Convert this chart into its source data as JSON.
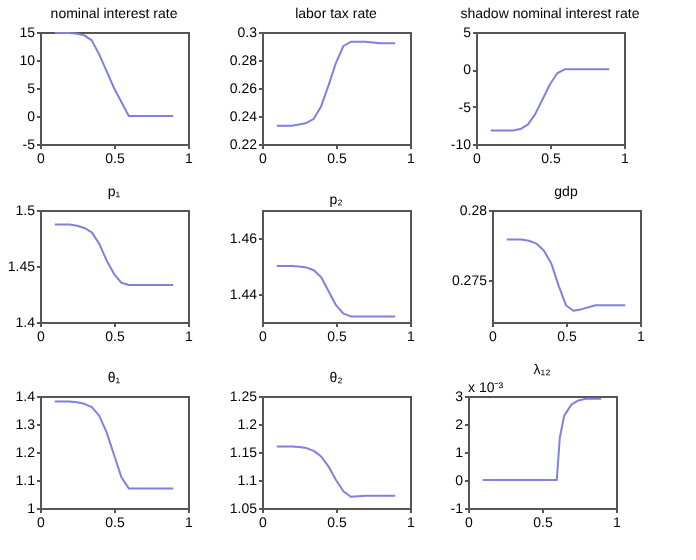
{
  "chart_data": [
    {
      "type": "line",
      "title": "nominal interest rate",
      "x": [
        0.1,
        0.2,
        0.25,
        0.3,
        0.35,
        0.4,
        0.45,
        0.5,
        0.55,
        0.6,
        0.7,
        0.8,
        0.9
      ],
      "series": [
        {
          "color": "#8080e0",
          "values": [
            14.8,
            14.8,
            14.7,
            14.4,
            13.5,
            11,
            8,
            5,
            2.5,
            0,
            0,
            0,
            0
          ]
        }
      ],
      "xlim": [
        0,
        1
      ],
      "xticks": [
        0,
        0.5,
        1
      ],
      "ylim": [
        -5,
        15
      ],
      "yticks": [
        -5,
        0,
        5,
        10,
        15
      ],
      "grid": false
    },
    {
      "type": "line",
      "title": "labor tax rate",
      "x": [
        0.1,
        0.2,
        0.25,
        0.3,
        0.35,
        0.4,
        0.45,
        0.5,
        0.55,
        0.6,
        0.7,
        0.8,
        0.9
      ],
      "series": [
        {
          "color": "#8080e0",
          "values": [
            0.233,
            0.233,
            0.234,
            0.235,
            0.238,
            0.247,
            0.262,
            0.278,
            0.29,
            0.293,
            0.293,
            0.292,
            0.292
          ]
        }
      ],
      "xlim": [
        0,
        1
      ],
      "xticks": [
        0,
        0.5,
        1
      ],
      "ylim": [
        0.22,
        0.3
      ],
      "yticks": [
        0.22,
        0.24,
        0.26,
        0.28,
        0.3
      ],
      "grid": false
    },
    {
      "type": "line",
      "title": "shadow nominal interest rate",
      "x": [
        0.1,
        0.2,
        0.25,
        0.3,
        0.35,
        0.4,
        0.45,
        0.5,
        0.55,
        0.6,
        0.7,
        0.8,
        0.9
      ],
      "series": [
        {
          "color": "#8080e0",
          "values": [
            -8.2,
            -8.2,
            -8.2,
            -8,
            -7.4,
            -6,
            -4,
            -2,
            -0.5,
            0,
            0,
            0,
            0
          ]
        }
      ],
      "xlim": [
        0,
        1
      ],
      "xticks": [
        0,
        0.5,
        1
      ],
      "ylim": [
        -10,
        5
      ],
      "yticks": [
        -10,
        -5,
        0,
        5
      ],
      "grid": false
    },
    {
      "type": "line",
      "title": "p₁",
      "x": [
        0.1,
        0.2,
        0.25,
        0.3,
        0.35,
        0.4,
        0.45,
        0.5,
        0.55,
        0.6,
        0.7,
        0.8,
        0.9
      ],
      "series": [
        {
          "color": "#8080e0",
          "values": [
            1.487,
            1.487,
            1.486,
            1.484,
            1.48,
            1.47,
            1.455,
            1.443,
            1.435,
            1.433,
            1.433,
            1.433,
            1.433
          ]
        }
      ],
      "xlim": [
        0,
        1
      ],
      "xticks": [
        0,
        0.5,
        1
      ],
      "ylim": [
        1.4,
        1.5
      ],
      "yticks": [
        1.4,
        1.45,
        1.5
      ],
      "grid": false
    },
    {
      "type": "line",
      "title": "p₂",
      "x": [
        0.1,
        0.2,
        0.25,
        0.3,
        0.35,
        0.4,
        0.45,
        0.5,
        0.55,
        0.6,
        0.7,
        0.8,
        0.9
      ],
      "series": [
        {
          "color": "#8080e0",
          "values": [
            1.45,
            1.45,
            1.4498,
            1.4495,
            1.4485,
            1.446,
            1.441,
            1.436,
            1.433,
            1.432,
            1.432,
            1.432,
            1.432
          ]
        }
      ],
      "xlim": [
        0,
        1
      ],
      "xticks": [
        0,
        0.5,
        1
      ],
      "ylim": [
        1.43,
        1.47
      ],
      "yticks": [
        1.44,
        1.46
      ],
      "grid": false
    },
    {
      "type": "line",
      "title": "gdp",
      "x": [
        0.1,
        0.2,
        0.25,
        0.3,
        0.35,
        0.4,
        0.45,
        0.5,
        0.55,
        0.6,
        0.7,
        0.8,
        0.9
      ],
      "series": [
        {
          "color": "#8080e0",
          "values": [
            0.2779,
            0.2779,
            0.2778,
            0.2776,
            0.2771,
            0.2762,
            0.2746,
            0.2732,
            0.2728,
            0.2729,
            0.2732,
            0.2732,
            0.2732
          ]
        }
      ],
      "xlim": [
        0,
        1
      ],
      "xticks": [
        0,
        0.5,
        1
      ],
      "ylim": [
        0.272,
        0.28
      ],
      "yticks": [
        0.275,
        0.28
      ],
      "grid": false
    },
    {
      "type": "line",
      "title": "θ₁",
      "x": [
        0.1,
        0.2,
        0.25,
        0.3,
        0.35,
        0.4,
        0.45,
        0.5,
        0.55,
        0.6,
        0.7,
        0.8,
        0.9
      ],
      "series": [
        {
          "color": "#8080e0",
          "values": [
            1.38,
            1.38,
            1.378,
            1.372,
            1.36,
            1.33,
            1.27,
            1.19,
            1.11,
            1.07,
            1.07,
            1.07,
            1.07
          ]
        }
      ],
      "xlim": [
        0,
        1
      ],
      "xticks": [
        0,
        0.5,
        1
      ],
      "ylim": [
        1,
        1.4
      ],
      "yticks": [
        1,
        1.1,
        1.2,
        1.3,
        1.4
      ],
      "grid": false
    },
    {
      "type": "line",
      "title": "θ₂",
      "x": [
        0.1,
        0.2,
        0.25,
        0.3,
        0.35,
        0.4,
        0.45,
        0.5,
        0.55,
        0.6,
        0.7,
        0.8,
        0.9
      ],
      "series": [
        {
          "color": "#8080e0",
          "values": [
            1.16,
            1.16,
            1.159,
            1.157,
            1.152,
            1.142,
            1.124,
            1.1,
            1.08,
            1.07,
            1.072,
            1.072,
            1.072
          ]
        }
      ],
      "xlim": [
        0,
        1
      ],
      "xticks": [
        0,
        0.5,
        1
      ],
      "ylim": [
        1.05,
        1.25
      ],
      "yticks": [
        1.05,
        1.1,
        1.15,
        1.2,
        1.25
      ],
      "grid": false
    },
    {
      "type": "line",
      "title": "λ₁₂",
      "annotations": [
        "x 10⁻³"
      ],
      "x": [
        0.1,
        0.2,
        0.3,
        0.4,
        0.5,
        0.6,
        0.62,
        0.65,
        0.7,
        0.75,
        0.8,
        0.9
      ],
      "series": [
        {
          "color": "#8080e0",
          "values": [
            0,
            0,
            0,
            0,
            0,
            0,
            1.5,
            2.3,
            2.7,
            2.85,
            2.9,
            2.9
          ]
        }
      ],
      "xlim": [
        0,
        1
      ],
      "xticks": [
        0,
        0.5,
        1
      ],
      "ylim": [
        -1,
        3
      ],
      "yticks": [
        -1,
        0,
        1,
        2,
        3
      ],
      "grid": false
    }
  ]
}
